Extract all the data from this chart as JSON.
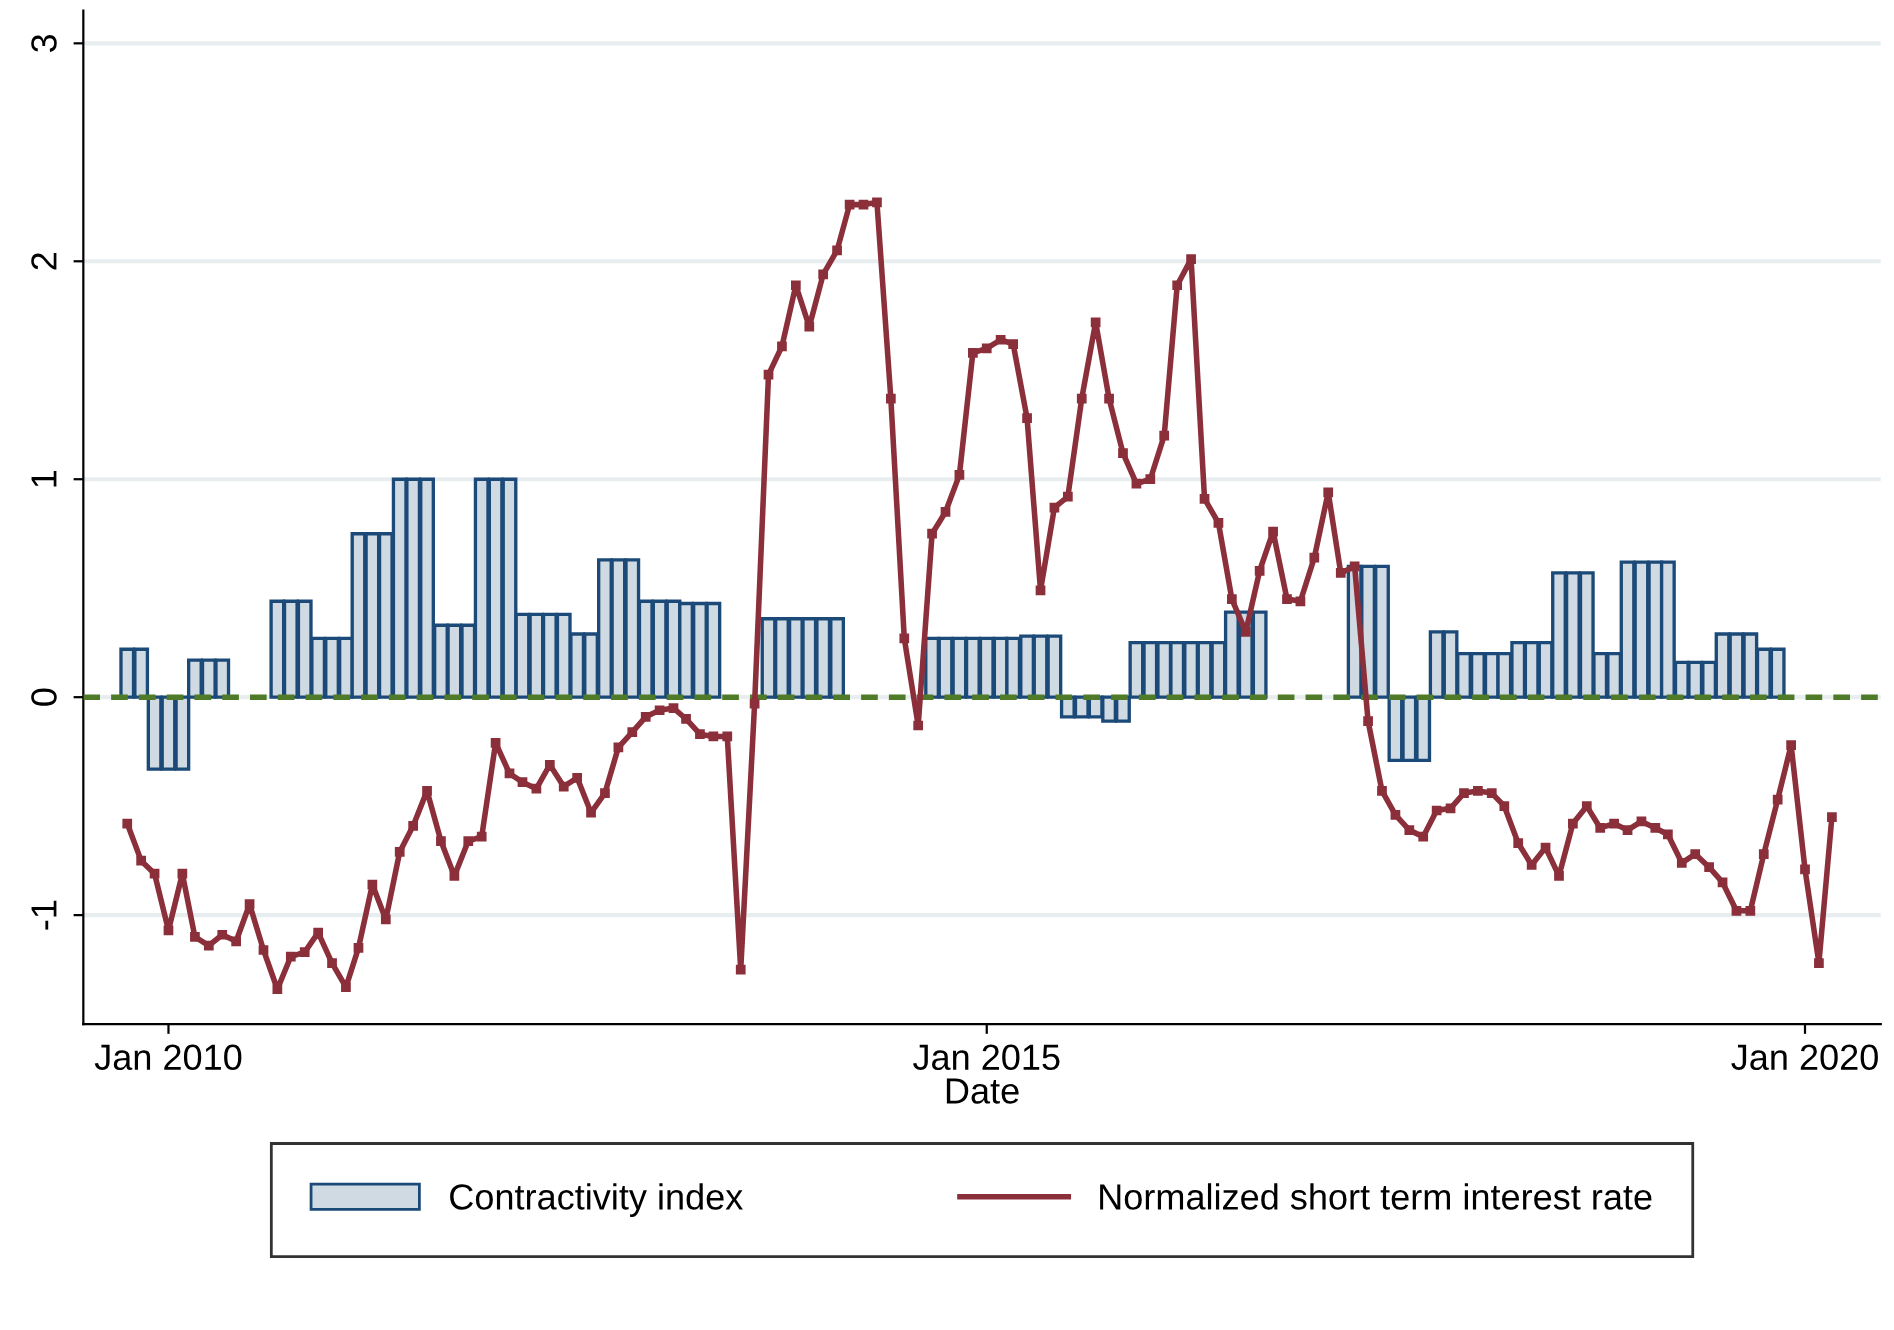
{
  "chart_data": {
    "type": "bar",
    "xlabel": "Date",
    "x": [
      "2009-10",
      "2009-11",
      "2009-12",
      "2010-01",
      "2010-02",
      "2010-03",
      "2010-04",
      "2010-05",
      "2010-06",
      "2010-07",
      "2010-08",
      "2010-09",
      "2010-10",
      "2010-11",
      "2010-12",
      "2011-01",
      "2011-02",
      "2011-03",
      "2011-04",
      "2011-05",
      "2011-06",
      "2011-07",
      "2011-08",
      "2011-09",
      "2011-10",
      "2011-11",
      "2011-12",
      "2012-01",
      "2012-02",
      "2012-03",
      "2012-04",
      "2012-05",
      "2012-06",
      "2012-07",
      "2012-08",
      "2012-09",
      "2012-10",
      "2012-11",
      "2012-12",
      "2013-01",
      "2013-02",
      "2013-03",
      "2013-04",
      "2013-05",
      "2013-06",
      "2013-07",
      "2013-08",
      "2013-09",
      "2013-10",
      "2013-11",
      "2013-12",
      "2014-01",
      "2014-02",
      "2014-03",
      "2014-04",
      "2014-05",
      "2014-06",
      "2014-07",
      "2014-08",
      "2014-09",
      "2014-10",
      "2014-11",
      "2014-12",
      "2015-01",
      "2015-02",
      "2015-03",
      "2015-04",
      "2015-05",
      "2015-06",
      "2015-07",
      "2015-08",
      "2015-09",
      "2015-10",
      "2015-11",
      "2015-12",
      "2016-01",
      "2016-02",
      "2016-03",
      "2016-04",
      "2016-05",
      "2016-06",
      "2016-07",
      "2016-08",
      "2016-09",
      "2016-10",
      "2016-11",
      "2016-12",
      "2017-01",
      "2017-02",
      "2017-03",
      "2017-04",
      "2017-05",
      "2017-06",
      "2017-07",
      "2017-08",
      "2017-09",
      "2017-10",
      "2017-11",
      "2017-12",
      "2018-01",
      "2018-02",
      "2018-03",
      "2018-04",
      "2018-05",
      "2018-06",
      "2018-07",
      "2018-08",
      "2018-09",
      "2018-10",
      "2018-11",
      "2018-12",
      "2019-01",
      "2019-02",
      "2019-03",
      "2019-04",
      "2019-05",
      "2019-06",
      "2019-07",
      "2019-08",
      "2019-09",
      "2019-10",
      "2019-11",
      "2019-12",
      "2020-01",
      "2020-02",
      "2020-03"
    ],
    "series": [
      {
        "name": "Contractivity index",
        "color": "#d0dae3",
        "values": [
          0.22,
          0.22,
          -0.33,
          -0.33,
          -0.33,
          0.17,
          0.17,
          0.17,
          null,
          null,
          null,
          0.44,
          0.44,
          0.44,
          0.27,
          0.27,
          0.27,
          0.75,
          0.75,
          0.75,
          1.0,
          1.0,
          1.0,
          0.33,
          0.33,
          0.33,
          1.0,
          1.0,
          1.0,
          0.38,
          0.38,
          0.38,
          0.38,
          0.29,
          0.29,
          0.63,
          0.63,
          0.63,
          0.44,
          0.44,
          0.44,
          0.43,
          0.43,
          0.43,
          null,
          null,
          null,
          0.36,
          0.36,
          0.36,
          0.36,
          0.36,
          0.36,
          null,
          null,
          null,
          null,
          null,
          null,
          0.27,
          0.27,
          0.27,
          0.27,
          0.27,
          0.27,
          0.27,
          0.28,
          0.28,
          0.28,
          -0.09,
          -0.09,
          -0.09,
          -0.11,
          -0.11,
          0.25,
          0.25,
          0.25,
          0.25,
          0.25,
          0.25,
          0.25,
          0.39,
          0.39,
          0.39,
          null,
          null,
          null,
          null,
          null,
          null,
          0.6,
          0.6,
          0.6,
          -0.29,
          -0.29,
          -0.29,
          0.3,
          0.3,
          0.2,
          0.2,
          0.2,
          0.2,
          0.25,
          0.25,
          0.25,
          0.57,
          0.57,
          0.57,
          0.2,
          0.2,
          0.62,
          0.62,
          0.62,
          0.62,
          0.16,
          0.16,
          0.16,
          0.29,
          0.29,
          0.29,
          0.22,
          0.22,
          null,
          null,
          null,
          null
        ]
      },
      {
        "name": "Normalized short term interest rate",
        "type": "line",
        "color": "#8b2f3b",
        "marker": "square",
        "line_style": "solid",
        "values": [
          -0.58,
          -0.75,
          -0.81,
          -1.07,
          -0.81,
          -1.1,
          -1.14,
          -1.09,
          -1.12,
          -0.95,
          -1.16,
          -1.34,
          -1.19,
          -1.17,
          -1.08,
          -1.22,
          -1.33,
          -1.15,
          -0.86,
          -1.02,
          -0.71,
          -0.59,
          -0.43,
          -0.66,
          -0.82,
          -0.66,
          -0.64,
          -0.21,
          -0.35,
          -0.39,
          -0.42,
          -0.31,
          -0.41,
          -0.37,
          -0.53,
          -0.44,
          -0.23,
          -0.16,
          -0.09,
          -0.06,
          -0.05,
          -0.1,
          -0.17,
          -0.18,
          -0.18,
          -1.25,
          -0.03,
          1.48,
          1.61,
          1.89,
          1.7,
          1.94,
          2.05,
          2.26,
          2.26,
          2.27,
          1.37,
          0.27,
          -0.13,
          0.75,
          0.85,
          1.02,
          1.58,
          1.6,
          1.64,
          1.62,
          1.28,
          0.49,
          0.87,
          0.92,
          1.37,
          1.72,
          1.37,
          1.12,
          0.98,
          1.0,
          1.2,
          1.89,
          2.01,
          0.91,
          0.8,
          0.45,
          0.3,
          0.58,
          0.76,
          0.45,
          0.44,
          0.64,
          0.94,
          0.57,
          0.6,
          -0.11,
          -0.43,
          -0.54,
          -0.61,
          -0.64,
          -0.52,
          -0.51,
          -0.44,
          -0.43,
          -0.44,
          -0.5,
          -0.67,
          -0.77,
          -0.69,
          -0.82,
          -0.58,
          -0.5,
          -0.6,
          -0.58,
          -0.61,
          -0.57,
          -0.6,
          -0.63,
          -0.76,
          -0.72,
          -0.78,
          -0.85,
          -0.98,
          -0.98,
          -0.72,
          -0.47,
          -0.22,
          -0.79,
          -1.22,
          -0.55
        ]
      }
    ],
    "xlim": [
      "2009-06-25",
      "2020-06-18"
    ],
    "xticks": [
      {
        "value": "2010-01",
        "label": "Jan 2010"
      },
      {
        "value": "2015-01",
        "label": "Jan 2015"
      },
      {
        "value": "2020-01",
        "label": "Jan 2020"
      }
    ],
    "ylim": [
      -1.5,
      3.15
    ],
    "yticks": [
      -1,
      0,
      1,
      2,
      3
    ],
    "grid": "y",
    "legend": "bottom",
    "ref_lines": [
      {
        "axis": "y",
        "value": 0,
        "color": "#4f7a28",
        "line_style": "dashed"
      }
    ]
  }
}
